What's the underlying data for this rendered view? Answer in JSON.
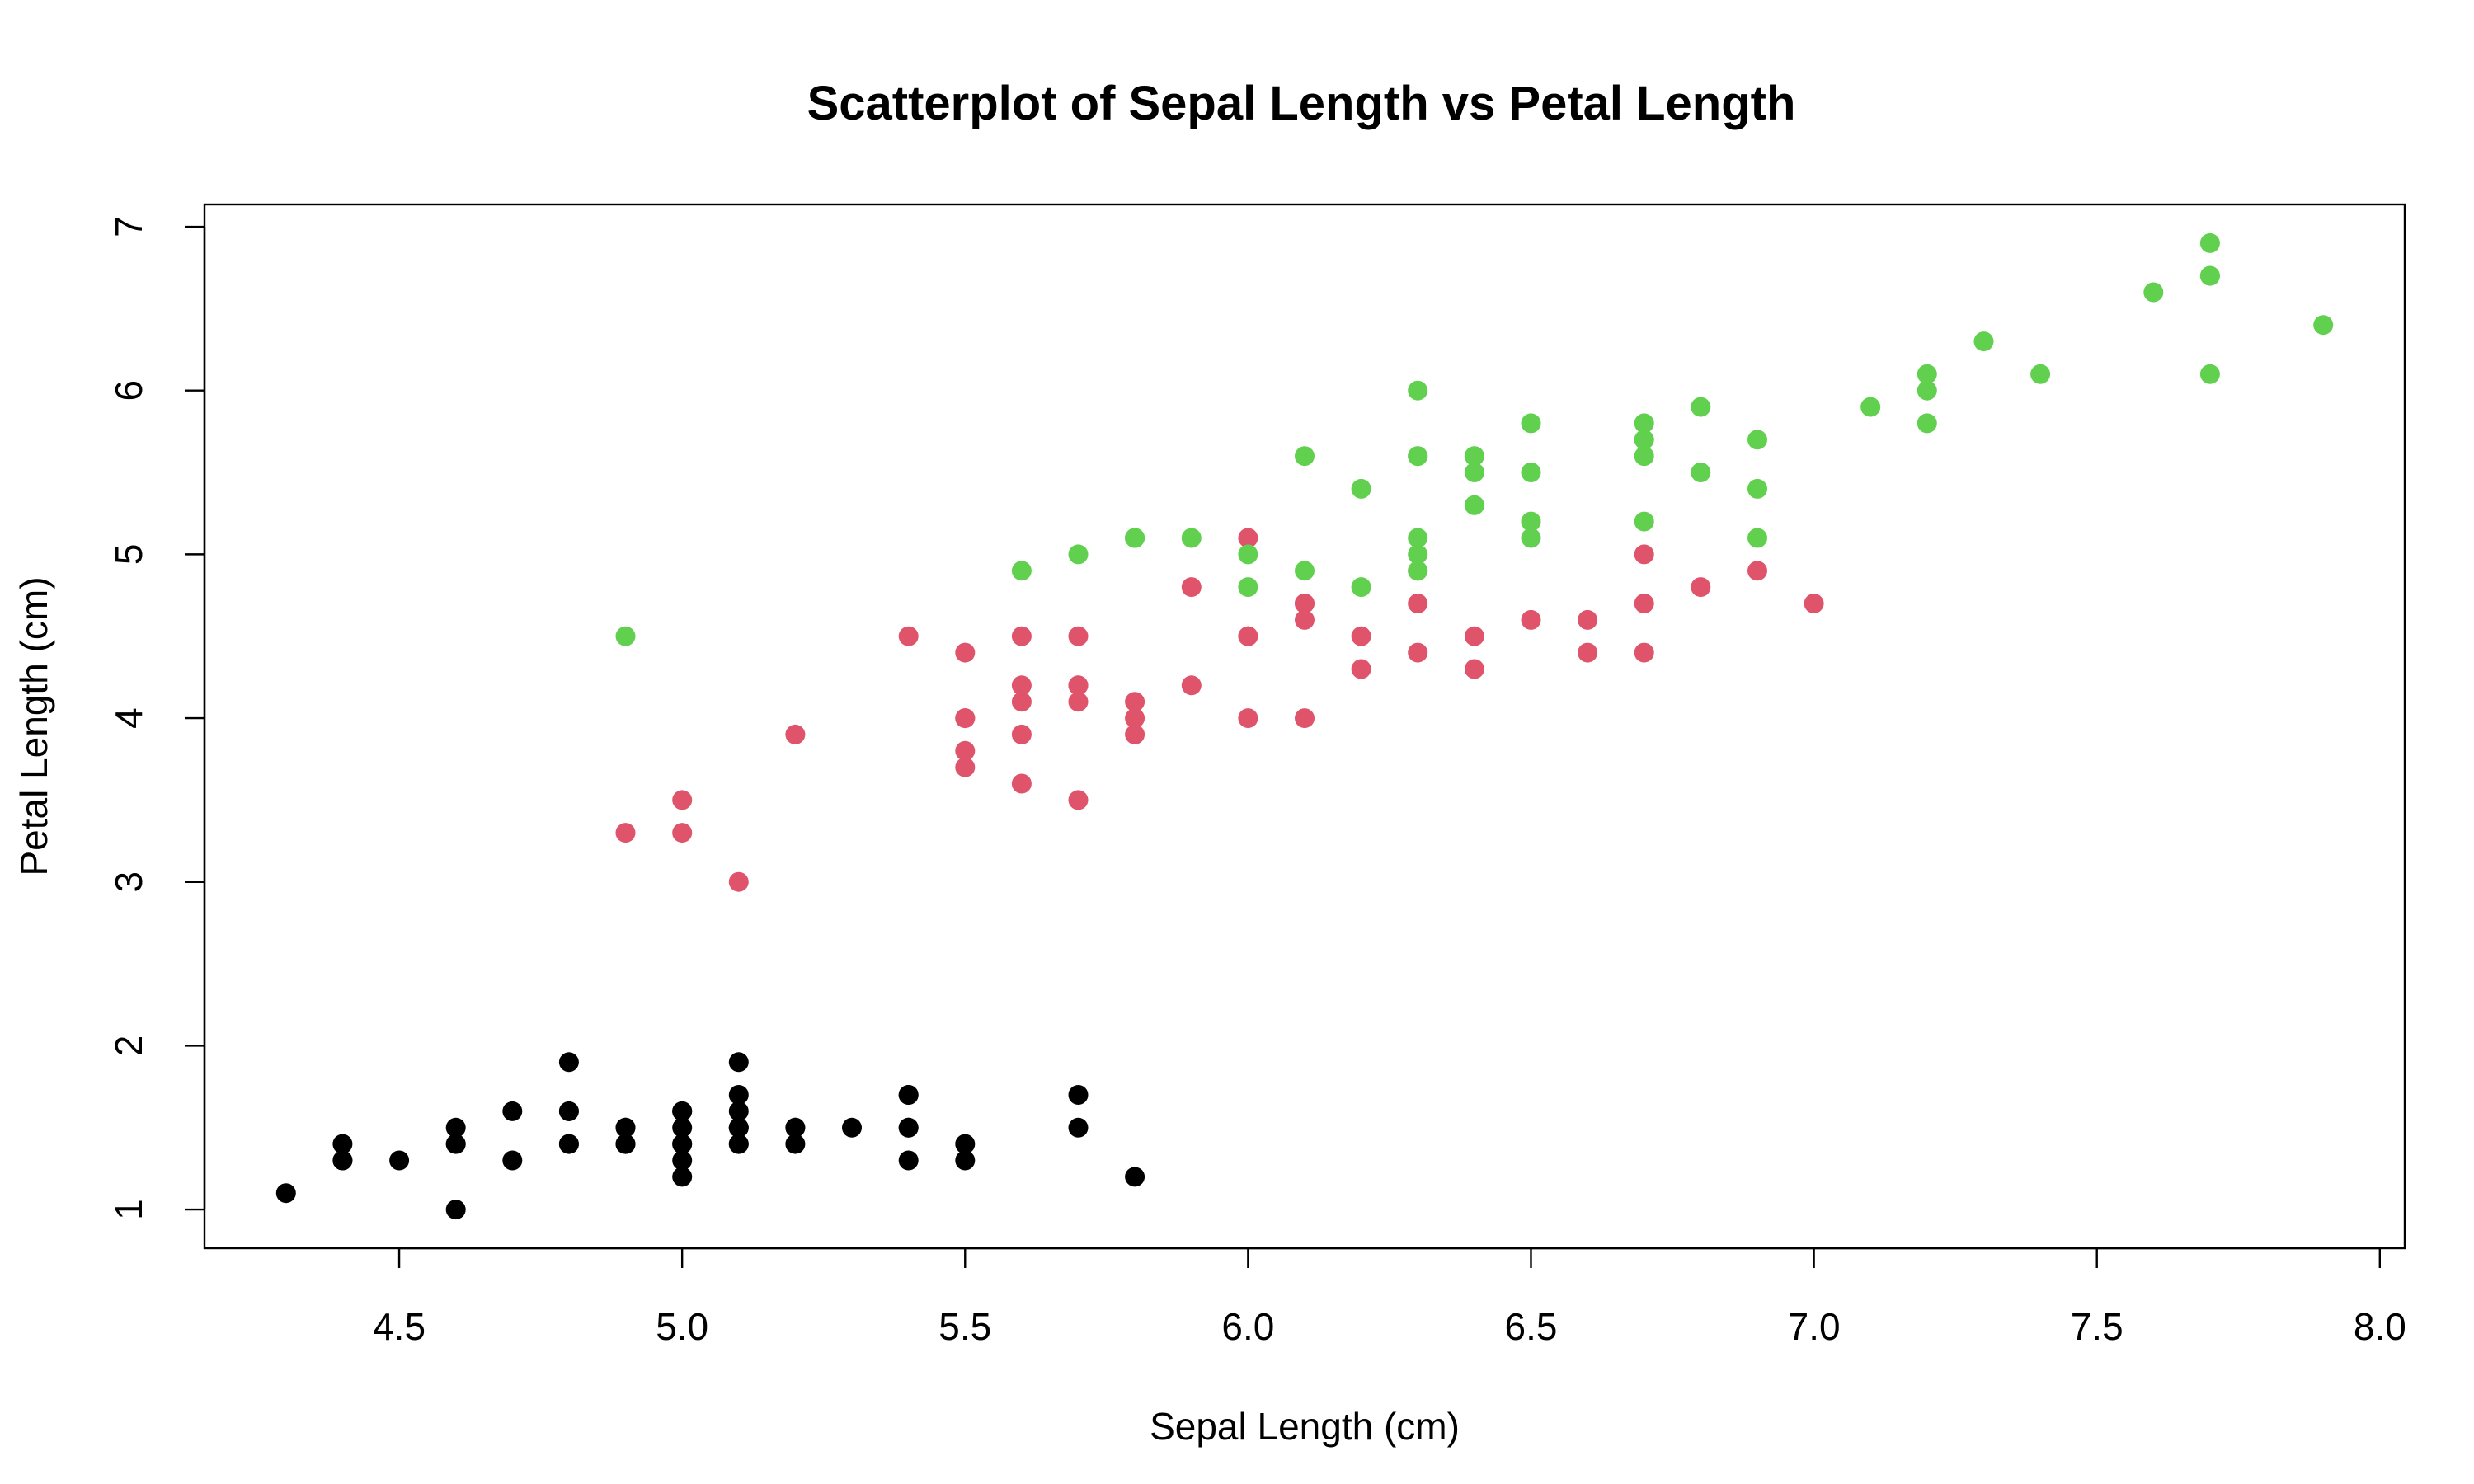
{
  "chart_data": {
    "type": "scatter",
    "title": "Scatterplot of Sepal Length vs Petal Length",
    "xlabel": "Sepal Length (cm)",
    "ylabel": "Petal Length (cm)",
    "xlim": [
      4.156,
      8.044
    ],
    "ylim": [
      0.764,
      7.136
    ],
    "x_ticks": [
      4.5,
      5.0,
      5.5,
      6.0,
      6.5,
      7.0,
      7.5,
      8.0
    ],
    "x_tick_labels": [
      "4.5",
      "5.0",
      "5.5",
      "6.0",
      "6.5",
      "7.0",
      "7.5",
      "8.0"
    ],
    "y_ticks": [
      1,
      2,
      3,
      4,
      5,
      6,
      7
    ],
    "y_tick_labels": [
      "1",
      "2",
      "3",
      "4",
      "5",
      "6",
      "7"
    ],
    "grid": false,
    "series": [
      {
        "color": "#000000",
        "points": [
          [
            5.1,
            1.4
          ],
          [
            4.9,
            1.4
          ],
          [
            4.7,
            1.3
          ],
          [
            4.6,
            1.5
          ],
          [
            5.0,
            1.4
          ],
          [
            5.4,
            1.7
          ],
          [
            4.6,
            1.4
          ],
          [
            5.0,
            1.5
          ],
          [
            4.4,
            1.4
          ],
          [
            4.9,
            1.5
          ],
          [
            5.4,
            1.5
          ],
          [
            4.8,
            1.6
          ],
          [
            4.8,
            1.4
          ],
          [
            4.3,
            1.1
          ],
          [
            5.8,
            1.2
          ],
          [
            5.7,
            1.5
          ],
          [
            5.4,
            1.3
          ],
          [
            5.1,
            1.4
          ],
          [
            5.7,
            1.7
          ],
          [
            5.1,
            1.5
          ],
          [
            5.4,
            1.7
          ],
          [
            5.1,
            1.5
          ],
          [
            4.6,
            1.0
          ],
          [
            5.1,
            1.7
          ],
          [
            4.8,
            1.9
          ],
          [
            5.0,
            1.6
          ],
          [
            5.0,
            1.6
          ],
          [
            5.2,
            1.5
          ],
          [
            5.2,
            1.4
          ],
          [
            4.7,
            1.6
          ],
          [
            4.8,
            1.6
          ],
          [
            5.4,
            1.5
          ],
          [
            5.2,
            1.5
          ],
          [
            5.5,
            1.4
          ],
          [
            4.9,
            1.5
          ],
          [
            5.0,
            1.2
          ],
          [
            5.5,
            1.3
          ],
          [
            4.9,
            1.4
          ],
          [
            4.4,
            1.3
          ],
          [
            5.1,
            1.5
          ],
          [
            5.0,
            1.3
          ],
          [
            4.5,
            1.3
          ],
          [
            4.4,
            1.3
          ],
          [
            5.0,
            1.6
          ],
          [
            5.1,
            1.9
          ],
          [
            4.8,
            1.4
          ],
          [
            5.1,
            1.6
          ],
          [
            4.6,
            1.4
          ],
          [
            5.3,
            1.5
          ],
          [
            5.0,
            1.4
          ]
        ]
      },
      {
        "color": "#DF536B",
        "points": [
          [
            7.0,
            4.7
          ],
          [
            6.4,
            4.5
          ],
          [
            6.9,
            4.9
          ],
          [
            5.5,
            4.0
          ],
          [
            6.5,
            4.6
          ],
          [
            5.7,
            4.5
          ],
          [
            6.3,
            4.7
          ],
          [
            4.9,
            3.3
          ],
          [
            6.6,
            4.6
          ],
          [
            5.2,
            3.9
          ],
          [
            5.0,
            3.5
          ],
          [
            5.9,
            4.2
          ],
          [
            6.0,
            4.0
          ],
          [
            6.1,
            4.7
          ],
          [
            5.6,
            3.6
          ],
          [
            6.7,
            4.4
          ],
          [
            5.6,
            4.5
          ],
          [
            5.8,
            4.1
          ],
          [
            6.2,
            4.5
          ],
          [
            5.6,
            3.9
          ],
          [
            5.9,
            4.8
          ],
          [
            6.1,
            4.0
          ],
          [
            6.3,
            4.9
          ],
          [
            6.1,
            4.7
          ],
          [
            6.4,
            4.3
          ],
          [
            6.6,
            4.4
          ],
          [
            6.8,
            4.8
          ],
          [
            6.7,
            5.0
          ],
          [
            6.0,
            4.5
          ],
          [
            5.7,
            3.5
          ],
          [
            5.5,
            3.8
          ],
          [
            5.5,
            3.7
          ],
          [
            5.8,
            3.9
          ],
          [
            6.0,
            5.1
          ],
          [
            5.4,
            4.5
          ],
          [
            6.0,
            4.5
          ],
          [
            6.7,
            4.7
          ],
          [
            6.3,
            4.4
          ],
          [
            5.6,
            4.1
          ],
          [
            5.5,
            4.0
          ],
          [
            5.5,
            4.4
          ],
          [
            6.1,
            4.6
          ],
          [
            5.8,
            4.0
          ],
          [
            5.0,
            3.3
          ],
          [
            5.6,
            4.2
          ],
          [
            5.7,
            4.2
          ],
          [
            5.7,
            4.2
          ],
          [
            6.2,
            4.3
          ],
          [
            5.1,
            3.0
          ],
          [
            5.7,
            4.1
          ]
        ]
      },
      {
        "color": "#61D04F",
        "points": [
          [
            6.3,
            6.0
          ],
          [
            5.8,
            5.1
          ],
          [
            7.1,
            5.9
          ],
          [
            6.3,
            5.6
          ],
          [
            6.5,
            5.8
          ],
          [
            7.6,
            6.6
          ],
          [
            4.9,
            4.5
          ],
          [
            7.3,
            6.3
          ],
          [
            6.7,
            5.8
          ],
          [
            7.2,
            6.1
          ],
          [
            6.5,
            5.1
          ],
          [
            6.4,
            5.3
          ],
          [
            6.8,
            5.5
          ],
          [
            5.7,
            5.0
          ],
          [
            5.8,
            5.1
          ],
          [
            6.4,
            5.3
          ],
          [
            6.5,
            5.5
          ],
          [
            7.7,
            6.7
          ],
          [
            7.7,
            6.9
          ],
          [
            6.0,
            5.0
          ],
          [
            6.9,
            5.7
          ],
          [
            5.6,
            4.9
          ],
          [
            7.7,
            6.7
          ],
          [
            6.3,
            4.9
          ],
          [
            6.7,
            5.7
          ],
          [
            7.2,
            6.0
          ],
          [
            6.2,
            4.8
          ],
          [
            6.1,
            4.9
          ],
          [
            6.4,
            5.6
          ],
          [
            7.2,
            5.8
          ],
          [
            7.4,
            6.1
          ],
          [
            7.9,
            6.4
          ],
          [
            6.4,
            5.6
          ],
          [
            6.3,
            5.1
          ],
          [
            6.1,
            5.6
          ],
          [
            7.7,
            6.1
          ],
          [
            6.3,
            5.6
          ],
          [
            6.4,
            5.5
          ],
          [
            6.0,
            4.8
          ],
          [
            6.9,
            5.4
          ],
          [
            6.7,
            5.6
          ],
          [
            6.9,
            5.1
          ],
          [
            5.8,
            5.1
          ],
          [
            6.8,
            5.9
          ],
          [
            6.7,
            5.7
          ],
          [
            6.7,
            5.2
          ],
          [
            6.3,
            5.0
          ],
          [
            6.5,
            5.2
          ],
          [
            6.2,
            5.4
          ],
          [
            5.9,
            5.1
          ]
        ]
      }
    ]
  }
}
